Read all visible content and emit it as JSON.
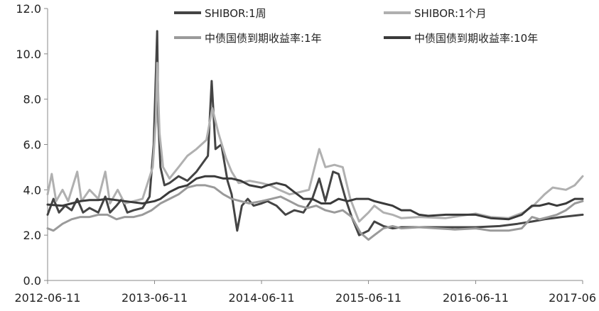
{
  "chart_data": {
    "type": "line",
    "title": "",
    "xlabel": "",
    "ylabel": "",
    "ylim": [
      0,
      12
    ],
    "yticks": [
      "0.0",
      "2.0",
      "4.0",
      "6.0",
      "8.0",
      "10.0",
      "12.0"
    ],
    "xticks": [
      "2012-06-11",
      "2013-06-11",
      "2014-06-11",
      "2015-06-11",
      "2016-06-11",
      "2017-06"
    ],
    "xrange": [
      "2012-06-11",
      "2017-06-11"
    ],
    "grid": false,
    "legend_position": "top",
    "series": [
      {
        "name": "SHIBOR:1周",
        "color": "#444444",
        "points": [
          [
            "2012-06-11",
            2.9
          ],
          [
            "2012-07-01",
            3.6
          ],
          [
            "2012-07-20",
            3.0
          ],
          [
            "2012-08-10",
            3.3
          ],
          [
            "2012-09-01",
            3.1
          ],
          [
            "2012-09-20",
            3.6
          ],
          [
            "2012-10-10",
            3.0
          ],
          [
            "2012-11-01",
            3.2
          ],
          [
            "2012-12-01",
            3.0
          ],
          [
            "2012-12-25",
            3.7
          ],
          [
            "2013-01-10",
            3.0
          ],
          [
            "2013-02-01",
            3.3
          ],
          [
            "2013-02-20",
            3.6
          ],
          [
            "2013-03-10",
            3.0
          ],
          [
            "2013-04-01",
            3.1
          ],
          [
            "2013-05-01",
            3.2
          ],
          [
            "2013-05-25",
            3.7
          ],
          [
            "2013-06-08",
            6.0
          ],
          [
            "2013-06-14",
            8.5
          ],
          [
            "2013-06-20",
            11.0
          ],
          [
            "2013-06-24",
            7.0
          ],
          [
            "2013-07-01",
            5.0
          ],
          [
            "2013-07-15",
            4.2
          ],
          [
            "2013-08-01",
            4.3
          ],
          [
            "2013-09-01",
            4.6
          ],
          [
            "2013-10-01",
            4.4
          ],
          [
            "2013-11-01",
            4.8
          ],
          [
            "2013-12-10",
            5.5
          ],
          [
            "2013-12-23",
            8.8
          ],
          [
            "2014-01-05",
            5.8
          ],
          [
            "2014-01-25",
            6.0
          ],
          [
            "2014-02-15",
            4.4
          ],
          [
            "2014-03-01",
            3.8
          ],
          [
            "2014-03-20",
            2.2
          ],
          [
            "2014-04-05",
            3.3
          ],
          [
            "2014-04-25",
            3.6
          ],
          [
            "2014-05-15",
            3.3
          ],
          [
            "2014-06-11",
            3.4
          ],
          [
            "2014-07-01",
            3.5
          ],
          [
            "2014-08-01",
            3.3
          ],
          [
            "2014-09-01",
            2.9
          ],
          [
            "2014-10-01",
            3.1
          ],
          [
            "2014-11-01",
            3.0
          ],
          [
            "2014-12-01",
            3.6
          ],
          [
            "2014-12-25",
            4.5
          ],
          [
            "2015-01-15",
            3.5
          ],
          [
            "2015-02-10",
            4.8
          ],
          [
            "2015-03-01",
            4.7
          ],
          [
            "2015-03-25",
            3.6
          ],
          [
            "2015-04-15",
            2.8
          ],
          [
            "2015-05-10",
            2.0
          ],
          [
            "2015-06-11",
            2.2
          ],
          [
            "2015-07-01",
            2.6
          ],
          [
            "2015-08-01",
            2.4
          ],
          [
            "2015-09-01",
            2.3
          ],
          [
            "2015-10-01",
            2.35
          ],
          [
            "2015-12-01",
            2.35
          ],
          [
            "2016-03-01",
            2.35
          ],
          [
            "2016-06-11",
            2.35
          ],
          [
            "2016-09-01",
            2.4
          ],
          [
            "2016-11-01",
            2.5
          ],
          [
            "2016-12-20",
            2.6
          ],
          [
            "2017-02-01",
            2.7
          ],
          [
            "2017-04-01",
            2.8
          ],
          [
            "2017-06-11",
            2.9
          ]
        ]
      },
      {
        "name": "SHIBOR:1个月",
        "color": "#b0b0b0",
        "points": [
          [
            "2012-06-11",
            3.8
          ],
          [
            "2012-06-25",
            4.7
          ],
          [
            "2012-07-10",
            3.5
          ],
          [
            "2012-08-01",
            4.0
          ],
          [
            "2012-08-20",
            3.5
          ],
          [
            "2012-09-20",
            4.8
          ],
          [
            "2012-10-05",
            3.5
          ],
          [
            "2012-11-01",
            4.0
          ],
          [
            "2012-12-01",
            3.6
          ],
          [
            "2012-12-25",
            4.8
          ],
          [
            "2013-01-10",
            3.4
          ],
          [
            "2013-02-05",
            4.0
          ],
          [
            "2013-03-01",
            3.4
          ],
          [
            "2013-04-01",
            3.5
          ],
          [
            "2013-05-01",
            3.6
          ],
          [
            "2013-06-05",
            5.0
          ],
          [
            "2013-06-15",
            7.0
          ],
          [
            "2013-06-20",
            9.6
          ],
          [
            "2013-06-28",
            6.5
          ],
          [
            "2013-07-10",
            5.0
          ],
          [
            "2013-08-01",
            4.5
          ],
          [
            "2013-09-01",
            5.0
          ],
          [
            "2013-10-01",
            5.5
          ],
          [
            "2013-11-01",
            5.8
          ],
          [
            "2013-12-05",
            6.2
          ],
          [
            "2013-12-25",
            7.6
          ],
          [
            "2014-01-15",
            6.5
          ],
          [
            "2014-02-10",
            5.4
          ],
          [
            "2014-03-01",
            4.8
          ],
          [
            "2014-03-25",
            4.3
          ],
          [
            "2014-05-01",
            4.4
          ],
          [
            "2014-06-11",
            4.3
          ],
          [
            "2014-07-10",
            4.2
          ],
          [
            "2014-08-10",
            4.0
          ],
          [
            "2014-09-15",
            3.8
          ],
          [
            "2014-10-20",
            3.9
          ],
          [
            "2014-11-20",
            4.0
          ],
          [
            "2014-12-25",
            5.8
          ],
          [
            "2015-01-15",
            5.0
          ],
          [
            "2015-02-15",
            5.1
          ],
          [
            "2015-03-15",
            5.0
          ],
          [
            "2015-04-10",
            3.6
          ],
          [
            "2015-05-10",
            2.6
          ],
          [
            "2015-06-11",
            3.0
          ],
          [
            "2015-07-01",
            3.3
          ],
          [
            "2015-08-01",
            3.0
          ],
          [
            "2015-09-01",
            2.9
          ],
          [
            "2015-10-01",
            2.75
          ],
          [
            "2015-12-01",
            2.8
          ],
          [
            "2016-03-01",
            2.75
          ],
          [
            "2016-06-11",
            2.95
          ],
          [
            "2016-08-01",
            2.8
          ],
          [
            "2016-10-01",
            2.75
          ],
          [
            "2016-11-20",
            3.0
          ],
          [
            "2016-12-25",
            3.3
          ],
          [
            "2017-02-01",
            3.8
          ],
          [
            "2017-03-01",
            4.1
          ],
          [
            "2017-04-15",
            4.0
          ],
          [
            "2017-05-15",
            4.2
          ],
          [
            "2017-06-11",
            4.6
          ]
        ]
      },
      {
        "name": "中债国债到期收益率:1年",
        "color": "#9a9a9a",
        "points": [
          [
            "2012-06-11",
            2.3
          ],
          [
            "2012-07-01",
            2.2
          ],
          [
            "2012-08-01",
            2.5
          ],
          [
            "2012-09-01",
            2.7
          ],
          [
            "2012-10-01",
            2.8
          ],
          [
            "2012-11-01",
            2.8
          ],
          [
            "2012-12-01",
            2.9
          ],
          [
            "2013-01-01",
            2.9
          ],
          [
            "2013-02-01",
            2.7
          ],
          [
            "2013-03-01",
            2.8
          ],
          [
            "2013-04-01",
            2.8
          ],
          [
            "2013-05-01",
            2.9
          ],
          [
            "2013-06-01",
            3.1
          ],
          [
            "2013-07-01",
            3.4
          ],
          [
            "2013-08-01",
            3.6
          ],
          [
            "2013-09-01",
            3.8
          ],
          [
            "2013-10-01",
            4.1
          ],
          [
            "2013-11-01",
            4.2
          ],
          [
            "2013-12-01",
            4.2
          ],
          [
            "2014-01-01",
            4.1
          ],
          [
            "2014-02-01",
            3.8
          ],
          [
            "2014-03-01",
            3.6
          ],
          [
            "2014-04-01",
            3.5
          ],
          [
            "2014-05-01",
            3.4
          ],
          [
            "2014-06-11",
            3.5
          ],
          [
            "2014-07-15",
            3.6
          ],
          [
            "2014-08-15",
            3.7
          ],
          [
            "2014-09-15",
            3.5
          ],
          [
            "2014-10-15",
            3.3
          ],
          [
            "2014-11-15",
            3.2
          ],
          [
            "2014-12-15",
            3.3
          ],
          [
            "2015-01-15",
            3.1
          ],
          [
            "2015-02-15",
            3.0
          ],
          [
            "2015-03-15",
            3.1
          ],
          [
            "2015-04-15",
            2.8
          ],
          [
            "2015-05-15",
            2.1
          ],
          [
            "2015-06-11",
            1.8
          ],
          [
            "2015-07-01",
            2.0
          ],
          [
            "2015-08-01",
            2.3
          ],
          [
            "2015-09-01",
            2.4
          ],
          [
            "2015-10-01",
            2.3
          ],
          [
            "2015-12-01",
            2.35
          ],
          [
            "2016-02-01",
            2.3
          ],
          [
            "2016-04-01",
            2.25
          ],
          [
            "2016-06-11",
            2.3
          ],
          [
            "2016-08-01",
            2.2
          ],
          [
            "2016-10-01",
            2.2
          ],
          [
            "2016-11-15",
            2.3
          ],
          [
            "2016-12-20",
            2.8
          ],
          [
            "2017-01-15",
            2.7
          ],
          [
            "2017-02-15",
            2.8
          ],
          [
            "2017-03-15",
            2.9
          ],
          [
            "2017-04-15",
            3.1
          ],
          [
            "2017-05-15",
            3.4
          ],
          [
            "2017-06-11",
            3.5
          ]
        ]
      },
      {
        "name": "中债国债到期收益率:10年",
        "color": "#3a3a3a",
        "points": [
          [
            "2012-06-11",
            3.35
          ],
          [
            "2012-08-01",
            3.3
          ],
          [
            "2012-09-01",
            3.4
          ],
          [
            "2012-10-01",
            3.5
          ],
          [
            "2012-11-01",
            3.55
          ],
          [
            "2012-12-01",
            3.55
          ],
          [
            "2013-01-01",
            3.6
          ],
          [
            "2013-03-01",
            3.5
          ],
          [
            "2013-05-01",
            3.4
          ],
          [
            "2013-06-11",
            3.5
          ],
          [
            "2013-07-01",
            3.6
          ],
          [
            "2013-08-01",
            3.9
          ],
          [
            "2013-09-01",
            4.1
          ],
          [
            "2013-10-01",
            4.2
          ],
          [
            "2013-11-01",
            4.5
          ],
          [
            "2013-12-01",
            4.6
          ],
          [
            "2014-01-01",
            4.6
          ],
          [
            "2014-02-01",
            4.5
          ],
          [
            "2014-03-01",
            4.5
          ],
          [
            "2014-04-01",
            4.4
          ],
          [
            "2014-05-01",
            4.2
          ],
          [
            "2014-06-11",
            4.1
          ],
          [
            "2014-07-01",
            4.2
          ],
          [
            "2014-08-01",
            4.3
          ],
          [
            "2014-09-01",
            4.2
          ],
          [
            "2014-10-01",
            3.9
          ],
          [
            "2014-11-01",
            3.6
          ],
          [
            "2014-12-01",
            3.6
          ],
          [
            "2015-01-01",
            3.4
          ],
          [
            "2015-02-01",
            3.4
          ],
          [
            "2015-03-01",
            3.6
          ],
          [
            "2015-04-01",
            3.5
          ],
          [
            "2015-05-01",
            3.6
          ],
          [
            "2015-06-11",
            3.6
          ],
          [
            "2015-07-01",
            3.5
          ],
          [
            "2015-08-01",
            3.4
          ],
          [
            "2015-09-01",
            3.3
          ],
          [
            "2015-10-01",
            3.1
          ],
          [
            "2015-11-01",
            3.1
          ],
          [
            "2015-12-01",
            2.9
          ],
          [
            "2016-01-01",
            2.85
          ],
          [
            "2016-03-01",
            2.9
          ],
          [
            "2016-06-11",
            2.9
          ],
          [
            "2016-08-01",
            2.75
          ],
          [
            "2016-10-01",
            2.7
          ],
          [
            "2016-11-15",
            2.9
          ],
          [
            "2016-12-20",
            3.3
          ],
          [
            "2017-01-15",
            3.3
          ],
          [
            "2017-02-15",
            3.4
          ],
          [
            "2017-03-15",
            3.3
          ],
          [
            "2017-04-15",
            3.4
          ],
          [
            "2017-05-15",
            3.6
          ],
          [
            "2017-06-11",
            3.6
          ]
        ]
      }
    ]
  }
}
